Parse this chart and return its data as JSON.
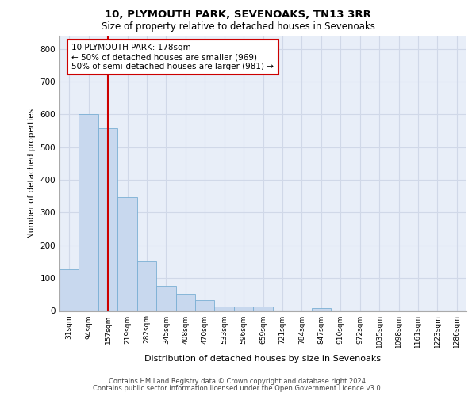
{
  "title": "10, PLYMOUTH PARK, SEVENOAKS, TN13 3RR",
  "subtitle": "Size of property relative to detached houses in Sevenoaks",
  "xlabel": "Distribution of detached houses by size in Sevenoaks",
  "ylabel": "Number of detached properties",
  "bar_color": "#c8d8ee",
  "bar_edge_color": "#7aafd4",
  "bg_color": "#e8eef8",
  "grid_color": "#d0d8e8",
  "categories": [
    "31sqm",
    "94sqm",
    "157sqm",
    "219sqm",
    "282sqm",
    "345sqm",
    "408sqm",
    "470sqm",
    "533sqm",
    "596sqm",
    "659sqm",
    "721sqm",
    "784sqm",
    "847sqm",
    "910sqm",
    "972sqm",
    "1035sqm",
    "1098sqm",
    "1161sqm",
    "1223sqm",
    "1286sqm"
  ],
  "values": [
    128,
    601,
    557,
    348,
    150,
    75,
    52,
    33,
    14,
    13,
    13,
    0,
    0,
    8,
    0,
    0,
    0,
    0,
    0,
    0,
    0
  ],
  "ylim": [
    0,
    840
  ],
  "yticks": [
    0,
    100,
    200,
    300,
    400,
    500,
    600,
    700,
    800
  ],
  "vline_x": 2.0,
  "annotation_text": "10 PLYMOUTH PARK: 178sqm\n← 50% of detached houses are smaller (969)\n50% of semi-detached houses are larger (981) →",
  "annotation_box_color": "#ffffff",
  "annotation_box_edge": "#cc0000",
  "vline_color": "#cc0000",
  "footer1": "Contains HM Land Registry data © Crown copyright and database right 2024.",
  "footer2": "Contains public sector information licensed under the Open Government Licence v3.0."
}
